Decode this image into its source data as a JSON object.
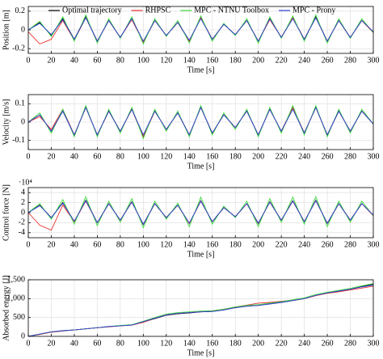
{
  "chart_data": [
    {
      "type": "line",
      "y_label": "Position [m]",
      "x_label": "Time [s]",
      "grid": true,
      "legend": "top",
      "x": [
        0,
        10,
        20,
        30,
        40,
        50,
        60,
        70,
        80,
        90,
        100,
        110,
        120,
        130,
        140,
        150,
        160,
        170,
        180,
        190,
        200,
        210,
        220,
        230,
        240,
        250,
        260,
        270,
        280,
        290,
        300
      ],
      "xlim": [
        0,
        300
      ],
      "xticks": [
        0,
        20,
        40,
        60,
        80,
        100,
        120,
        140,
        160,
        180,
        200,
        220,
        240,
        260,
        280,
        300
      ],
      "ylim": [
        -0.25,
        0.25
      ],
      "yticks": [
        -0.2,
        0,
        0.2
      ],
      "series": [
        {
          "name": "Optimal trajectory",
          "color": "#000000",
          "values": [
            0,
            0.08,
            -0.06,
            0.12,
            -0.1,
            0.14,
            -0.12,
            0.1,
            -0.08,
            0.12,
            -0.13,
            0.1,
            -0.06,
            0.08,
            -0.12,
            0.13,
            -0.1,
            0.06,
            -0.05,
            0.1,
            -0.12,
            0.12,
            -0.08,
            0.13,
            -0.1,
            0.14,
            -0.12,
            0.1,
            -0.08,
            0.1,
            -0.02
          ]
        },
        {
          "name": "RHPSC",
          "color": "#e8312f",
          "values": [
            -0.02,
            -0.15,
            -0.1,
            0.1,
            -0.11,
            0.13,
            -0.12,
            0.1,
            -0.08,
            0.11,
            -0.13,
            0.1,
            -0.06,
            0.08,
            -0.12,
            0.13,
            -0.1,
            0.06,
            -0.05,
            0.1,
            -0.12,
            0.11,
            -0.08,
            0.13,
            -0.1,
            0.13,
            -0.12,
            0.1,
            -0.08,
            0.1,
            -0.03
          ]
        },
        {
          "name": "MPC - NTNU Toolbox",
          "color": "#3ddc3d",
          "values": [
            0,
            0.09,
            -0.07,
            0.14,
            -0.12,
            0.16,
            -0.14,
            0.12,
            -0.09,
            0.14,
            -0.15,
            0.12,
            -0.07,
            0.1,
            -0.14,
            0.15,
            -0.12,
            0.07,
            -0.06,
            0.12,
            -0.14,
            0.14,
            -0.09,
            0.15,
            -0.12,
            0.16,
            -0.14,
            0.12,
            -0.09,
            0.12,
            -0.03
          ]
        },
        {
          "name": "MPC - Prony",
          "color": "#3040d8",
          "values": [
            0,
            0.07,
            -0.05,
            0.11,
            -0.1,
            0.13,
            -0.12,
            0.1,
            -0.08,
            0.12,
            -0.12,
            0.1,
            -0.06,
            0.08,
            -0.11,
            0.12,
            -0.1,
            0.06,
            -0.05,
            0.1,
            -0.12,
            0.12,
            -0.08,
            0.12,
            -0.1,
            0.13,
            -0.12,
            0.1,
            -0.08,
            0.1,
            -0.02
          ]
        }
      ]
    },
    {
      "type": "line",
      "y_label": "Velocity [m/s]",
      "x_label": "Time [s]",
      "grid": true,
      "x": [
        0,
        10,
        20,
        30,
        40,
        50,
        60,
        70,
        80,
        90,
        100,
        110,
        120,
        130,
        140,
        150,
        160,
        170,
        180,
        190,
        200,
        210,
        220,
        230,
        240,
        250,
        260,
        270,
        280,
        290,
        300
      ],
      "xlim": [
        0,
        300
      ],
      "xticks": [
        0,
        20,
        40,
        60,
        80,
        100,
        120,
        140,
        160,
        180,
        200,
        220,
        240,
        260,
        280,
        300
      ],
      "ylim": [
        -0.15,
        0.15
      ],
      "yticks": [
        -0.1,
        0,
        0.1
      ],
      "series": [
        {
          "color": "#000000",
          "values": [
            0,
            0.04,
            -0.05,
            0.06,
            -0.07,
            0.08,
            -0.07,
            0.06,
            -0.05,
            0.07,
            -0.08,
            0.06,
            -0.04,
            0.05,
            -0.07,
            0.08,
            -0.06,
            0.04,
            -0.03,
            0.06,
            -0.07,
            0.07,
            -0.05,
            0.08,
            -0.06,
            0.08,
            -0.07,
            0.06,
            -0.05,
            0.06,
            -0.01
          ]
        },
        {
          "color": "#e8312f",
          "values": [
            0,
            0.03,
            -0.04,
            0.07,
            -0.07,
            0.08,
            -0.07,
            0.06,
            -0.05,
            0.07,
            -0.08,
            0.06,
            -0.04,
            0.05,
            -0.07,
            0.08,
            -0.06,
            0.04,
            -0.03,
            0.06,
            -0.07,
            0.07,
            -0.05,
            0.08,
            -0.06,
            0.08,
            -0.07,
            0.06,
            -0.05,
            0.06,
            -0.01
          ]
        },
        {
          "color": "#3ddc3d",
          "values": [
            0,
            0.05,
            -0.06,
            0.07,
            -0.08,
            0.09,
            -0.08,
            0.07,
            -0.06,
            0.08,
            -0.09,
            0.07,
            -0.05,
            0.06,
            -0.08,
            0.09,
            -0.07,
            0.05,
            -0.04,
            0.07,
            -0.08,
            0.08,
            -0.06,
            0.09,
            -0.07,
            0.09,
            -0.08,
            0.07,
            -0.06,
            0.07,
            -0.01
          ]
        },
        {
          "color": "#3040d8",
          "values": [
            0,
            0.04,
            -0.05,
            0.06,
            -0.07,
            0.08,
            -0.07,
            0.06,
            -0.05,
            0.07,
            -0.07,
            0.06,
            -0.04,
            0.05,
            -0.07,
            0.08,
            -0.06,
            0.04,
            -0.03,
            0.06,
            -0.07,
            0.07,
            -0.05,
            0.07,
            -0.06,
            0.08,
            -0.07,
            0.06,
            -0.05,
            0.06,
            -0.01
          ]
        }
      ]
    },
    {
      "type": "line",
      "y_label": "Control force [N]",
      "x_label": "Time [s]",
      "y_multiplier": "·10⁴",
      "grid": true,
      "x": [
        0,
        10,
        20,
        30,
        40,
        50,
        60,
        70,
        80,
        90,
        100,
        110,
        120,
        130,
        140,
        150,
        160,
        170,
        180,
        190,
        200,
        210,
        220,
        230,
        240,
        250,
        260,
        270,
        280,
        290,
        300
      ],
      "xlim": [
        0,
        300
      ],
      "xticks": [
        0,
        20,
        40,
        60,
        80,
        100,
        120,
        140,
        160,
        180,
        200,
        220,
        240,
        260,
        280,
        300
      ],
      "ylim": [
        -5,
        5
      ],
      "yticks": [
        -4,
        -2,
        0,
        2,
        4
      ],
      "series": [
        {
          "color": "#000000",
          "values": [
            0,
            1.5,
            -1,
            2,
            -1.8,
            2.5,
            -2,
            1.8,
            -1.5,
            2.2,
            -2.4,
            1.8,
            -1,
            1.5,
            -2.2,
            2.4,
            -1.8,
            1,
            -0.8,
            1.8,
            -2.2,
            2.2,
            -1.5,
            2.4,
            -1.8,
            2.5,
            -2.2,
            1.8,
            -1.5,
            1.8,
            -0.5
          ]
        },
        {
          "color": "#e8312f",
          "values": [
            0,
            -2.5,
            -3.5,
            1.5,
            -1.8,
            2.3,
            -2,
            1.8,
            -1.5,
            2.1,
            -2.3,
            1.8,
            -1,
            1.5,
            -2.2,
            2.3,
            -1.8,
            1,
            -0.8,
            1.8,
            -2.1,
            2.1,
            -1.5,
            2.3,
            -1.8,
            2.4,
            -2.1,
            1.8,
            -1.5,
            1.8,
            -0.6
          ]
        },
        {
          "color": "#3ddc3d",
          "values": [
            0,
            1.8,
            -1.3,
            2.6,
            -2.3,
            3.2,
            -2.6,
            2.3,
            -1.9,
            2.8,
            -3,
            2.3,
            -1.3,
            1.9,
            -2.8,
            3.1,
            -2.3,
            1.3,
            -1,
            2.3,
            -2.8,
            2.8,
            -1.9,
            3.1,
            -2.3,
            3.2,
            -2.8,
            2.3,
            -1.9,
            2.3,
            -0.6
          ]
        },
        {
          "color": "#3040d8",
          "values": [
            0,
            1.4,
            -1,
            1.9,
            -1.7,
            2.4,
            -2,
            1.8,
            -1.5,
            2.1,
            -2.3,
            1.8,
            -1,
            1.5,
            -2.1,
            2.3,
            -1.8,
            1,
            -0.8,
            1.8,
            -2.1,
            2.1,
            -1.5,
            2.3,
            -1.8,
            2.4,
            -2.1,
            1.8,
            -1.5,
            1.8,
            -0.5
          ]
        }
      ]
    },
    {
      "type": "line",
      "y_label": "Absorbed energy [J]",
      "x_label": "Time [s]",
      "grid": true,
      "x": [
        0,
        10,
        20,
        30,
        40,
        50,
        60,
        70,
        80,
        90,
        100,
        110,
        120,
        130,
        140,
        150,
        160,
        170,
        180,
        190,
        200,
        210,
        220,
        230,
        240,
        250,
        260,
        270,
        280,
        290,
        300
      ],
      "xlim": [
        0,
        300
      ],
      "xticks": [
        0,
        20,
        40,
        60,
        80,
        100,
        120,
        140,
        160,
        180,
        200,
        220,
        240,
        260,
        280,
        300
      ],
      "ylim": [
        0,
        1500
      ],
      "yticks": [
        0,
        500,
        {
          "value": 1000,
          "label": "1,000"
        },
        {
          "value": 1500,
          "label": "1,500"
        }
      ],
      "series": [
        {
          "color": "#000000",
          "values": [
            0,
            60,
            120,
            150,
            170,
            200,
            230,
            260,
            280,
            300,
            380,
            470,
            560,
            600,
            620,
            650,
            660,
            700,
            760,
            800,
            820,
            860,
            900,
            950,
            1000,
            1080,
            1150,
            1200,
            1250,
            1320,
            1380
          ]
        },
        {
          "color": "#e8312f",
          "values": [
            0,
            50,
            110,
            140,
            170,
            200,
            230,
            250,
            280,
            300,
            370,
            480,
            570,
            610,
            630,
            660,
            680,
            720,
            780,
            830,
            880,
            900,
            930,
            960,
            1000,
            1080,
            1140,
            1180,
            1230,
            1280,
            1330
          ]
        },
        {
          "color": "#3ddc3d",
          "values": [
            0,
            60,
            120,
            150,
            170,
            200,
            230,
            260,
            290,
            310,
            400,
            500,
            590,
            630,
            650,
            670,
            680,
            720,
            780,
            820,
            840,
            880,
            920,
            970,
            1020,
            1110,
            1170,
            1220,
            1270,
            1340,
            1400
          ]
        },
        {
          "color": "#3040d8",
          "values": [
            0,
            60,
            120,
            150,
            170,
            200,
            230,
            260,
            280,
            300,
            390,
            480,
            570,
            610,
            630,
            650,
            660,
            700,
            760,
            800,
            820,
            860,
            900,
            950,
            1000,
            1090,
            1150,
            1200,
            1250,
            1310,
            1360
          ]
        }
      ]
    }
  ]
}
